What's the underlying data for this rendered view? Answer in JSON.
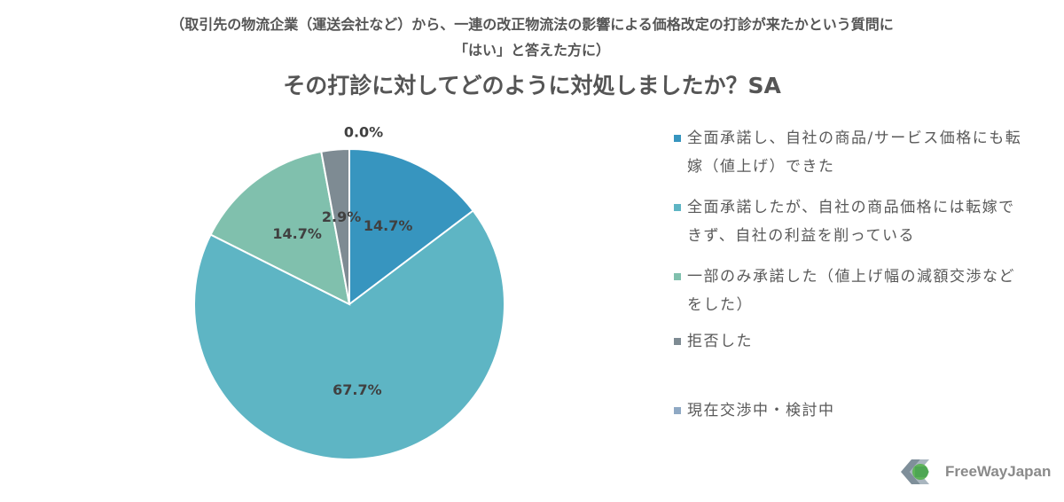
{
  "subtitle_lines": [
    "（取引先の物流企業（運送会社など）から、一連の改正物流法の影響による価格改定の打診が来たかという質問に",
    "「はい」と答えた方に）"
  ],
  "title": "その打診に対してどのように対処しましたか？SA",
  "chart_data": {
    "type": "pie",
    "title": "その打診に対してどのように対処しましたか？SA",
    "slices": [
      {
        "label": "全面承諾し、自社の商品/サービス価格にも転嫁（値上げ）できた",
        "value": 14.7,
        "display": "14.7%",
        "color": "#3795bf"
      },
      {
        "label": "全面承諾したが、自社の商品価格には転嫁できず、自社の利益を削っている",
        "value": 67.7,
        "display": "67.7%",
        "color": "#5eb5c4"
      },
      {
        "label": "一部のみ承諾した（値上げ幅の減額交渉などをした）",
        "value": 14.7,
        "display": "14.7%",
        "color": "#80c0ad"
      },
      {
        "label": "拒否した",
        "value": 2.9,
        "display": "2.9%",
        "color": "#7e8b93"
      },
      {
        "label": "現在交渉中・検討中",
        "value": 0.0,
        "display": "0.0%",
        "color": "#8fa9c4"
      }
    ],
    "start_angle_deg": 0,
    "direction": "clockwise",
    "label_color": "#404040"
  },
  "legend": [
    {
      "lines": [
        "全面承諾し、自社の商品/サービス価格にも転",
        "嫁（値上げ）できた"
      ],
      "color": "#3795bf"
    },
    {
      "lines": [
        "全面承諾したが、自社の商品価格には転嫁で",
        "きず、自社の利益を削っている"
      ],
      "color": "#5eb5c4"
    },
    {
      "lines": [
        "一部のみ承諾した（値上げ幅の減額交渉など",
        "をした）"
      ],
      "color": "#80c0ad"
    },
    {
      "lines": [
        "拒否した"
      ],
      "color": "#7e8b93"
    },
    {
      "lines": [
        "現在交渉中・検討中"
      ],
      "color": "#8fa9c4"
    }
  ],
  "logo": {
    "text": "FreeWayJapan"
  }
}
